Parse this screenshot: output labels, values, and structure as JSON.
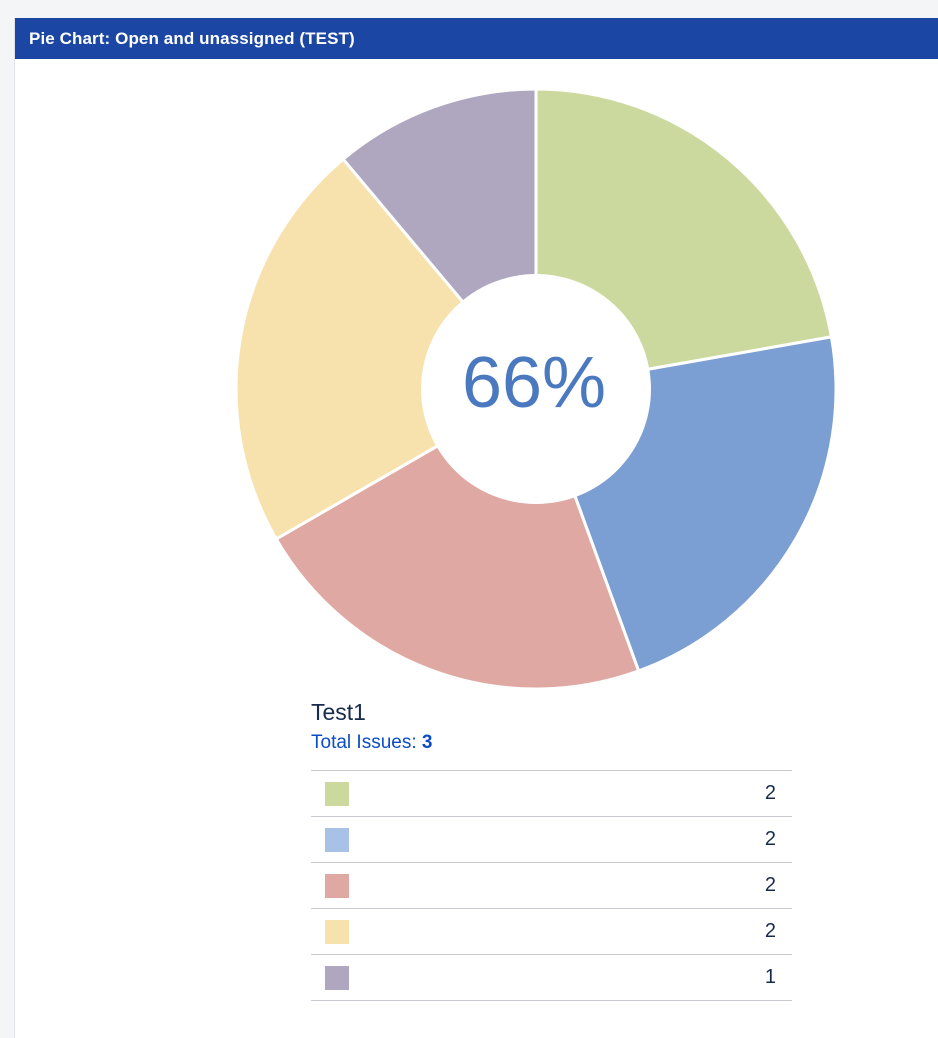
{
  "gadget": {
    "title": "Pie Chart: Open and unassigned (TEST)"
  },
  "chart_data": {
    "type": "pie",
    "center_label": "66%",
    "slices": [
      {
        "value": 2,
        "color": "#cbd99f"
      },
      {
        "value": 2,
        "color": "#7b9fd2"
      },
      {
        "value": 2,
        "color": "#e0a8a2"
      },
      {
        "value": 2,
        "color": "#f7e2ae"
      },
      {
        "value": 1,
        "color": "#afa6c0"
      }
    ]
  },
  "legend": {
    "title": "Test1",
    "total_label": "Total Issues:",
    "total_count": "3",
    "rows": [
      {
        "count": "2",
        "color": "#cbd99f"
      },
      {
        "count": "2",
        "color": "#a8c1e6"
      },
      {
        "count": "2",
        "color": "#e0a8a2"
      },
      {
        "count": "2",
        "color": "#f7e2ae"
      },
      {
        "count": "1",
        "color": "#afa6c0"
      }
    ]
  }
}
